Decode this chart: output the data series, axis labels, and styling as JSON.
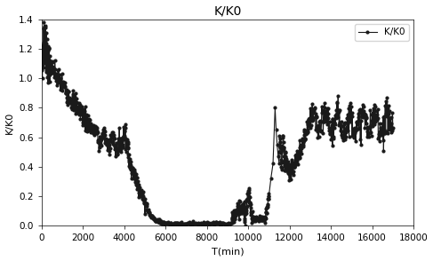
{
  "title": "K/K0",
  "xlabel": "T(min)",
  "ylabel": "K/K0",
  "legend_label": "K/K0",
  "xlim": [
    0,
    18000
  ],
  "ylim": [
    0,
    1.4
  ],
  "xticks": [
    0,
    2000,
    4000,
    6000,
    8000,
    10000,
    12000,
    14000,
    16000,
    18000
  ],
  "yticks": [
    0,
    0.2,
    0.4,
    0.6,
    0.8,
    1.0,
    1.2,
    1.4
  ],
  "line_color": "#1a1a1a",
  "marker": "o",
  "marker_size": 2.0,
  "linewidth": 0.8,
  "background_color": "#ffffff"
}
